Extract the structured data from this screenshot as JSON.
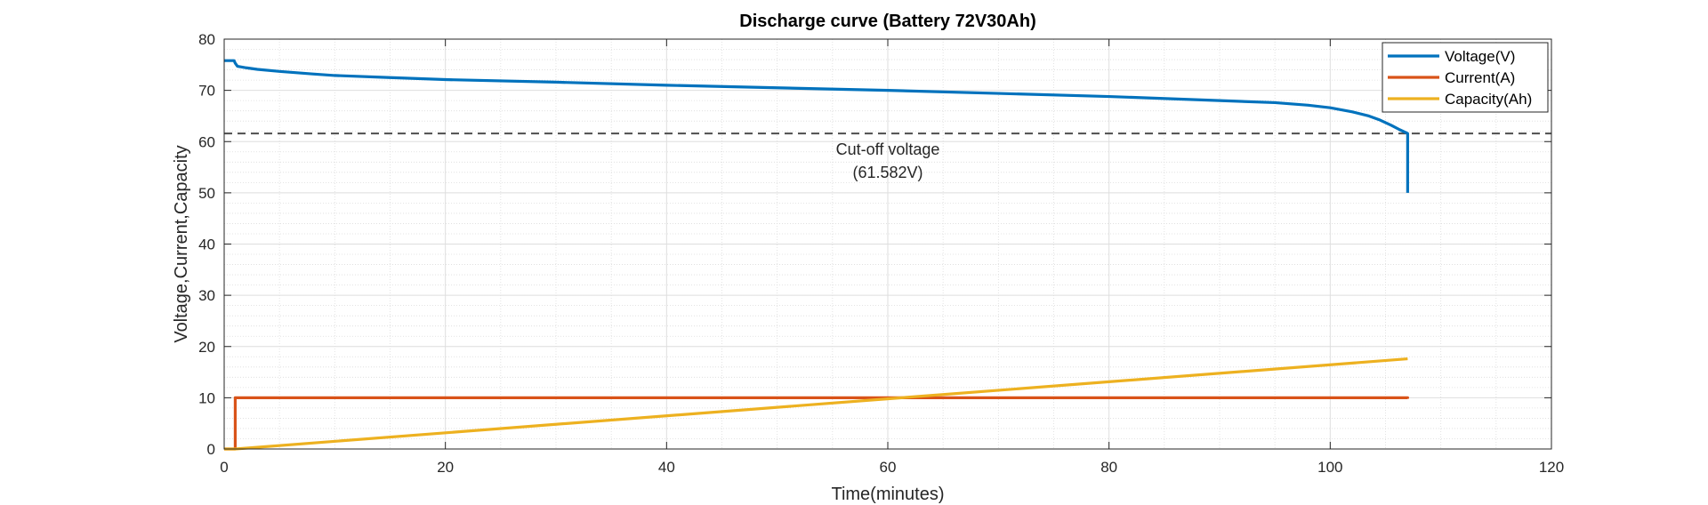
{
  "chart_data": {
    "type": "line",
    "title": "Discharge curve (Battery 72V30Ah)",
    "xlabel": "Time(minutes)",
    "ylabel": "Voltage,Current,Capacity",
    "xlim": [
      0,
      120
    ],
    "ylim": [
      0,
      80
    ],
    "xticks": [
      0,
      20,
      40,
      60,
      80,
      100,
      120
    ],
    "yticks": [
      0,
      10,
      20,
      30,
      40,
      50,
      60,
      70,
      80
    ],
    "grid": true,
    "minor_grid": true,
    "legend_position": "top-right",
    "series": [
      {
        "name": "Voltage(V)",
        "color": "#0072BD",
        "x": [
          0,
          0.9,
          1.0,
          1.2,
          2,
          3,
          5,
          8,
          10,
          15,
          20,
          30,
          40,
          50,
          60,
          70,
          80,
          90,
          95,
          98,
          100,
          102,
          103.5,
          104.5,
          105.5,
          106.3,
          107,
          107,
          107
        ],
        "y": [
          75.8,
          75.8,
          75.3,
          74.7,
          74.4,
          74.1,
          73.7,
          73.2,
          72.9,
          72.5,
          72.1,
          71.6,
          71.0,
          70.5,
          70.0,
          69.4,
          68.8,
          68.0,
          67.6,
          67.1,
          66.6,
          65.8,
          65.0,
          64.2,
          63.2,
          62.3,
          61.6,
          55.0,
          50.0
        ]
      },
      {
        "name": "Current(A)",
        "color": "#D95319",
        "x": [
          0,
          1.0,
          1.0,
          107,
          107
        ],
        "y": [
          0,
          0,
          10,
          10,
          9.8
        ]
      },
      {
        "name": "Capacity(Ah)",
        "color": "#EDB120",
        "x": [
          0,
          1,
          107
        ],
        "y": [
          0,
          0,
          17.6
        ]
      }
    ],
    "reference_lines": [
      {
        "orientation": "horizontal",
        "y": 61.582,
        "style": "dashed",
        "color": "#4d4d4d"
      }
    ],
    "annotations": [
      {
        "lines": [
          "Cut-off voltage",
          "(61.582V)"
        ],
        "x": 60,
        "y": 57.4
      }
    ]
  }
}
